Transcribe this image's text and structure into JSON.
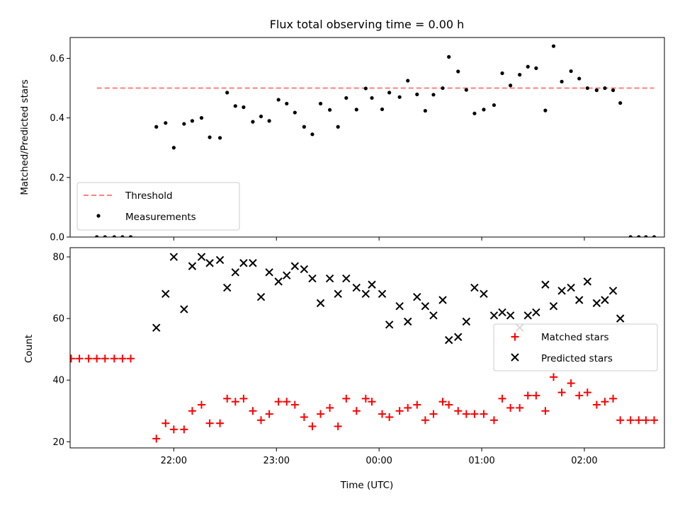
{
  "chart_data": [
    {
      "type": "scatter",
      "title": "Flux total observing time = 0.00 h",
      "ylabel": "Matched/Predicted stars",
      "xlabel": "",
      "xlim_hours": [
        20.99,
        26.78
      ],
      "ylim": [
        0,
        0.67
      ],
      "yticks": [
        0.0,
        0.2,
        0.4,
        0.6
      ],
      "ytick_labels": [
        "0.0",
        "0.2",
        "0.4",
        "0.6"
      ],
      "threshold": {
        "name": "Threshold",
        "value": 0.5,
        "x_range_hours": [
          21.25,
          26.68
        ],
        "color": "#ff7f7f"
      },
      "legend": {
        "placement": "lower-left",
        "entries": [
          "Threshold",
          "Measurements"
        ]
      },
      "series": [
        {
          "name": "Measurements",
          "color": "#000000",
          "x_hours": [
            21.25,
            21.33,
            21.42,
            21.5,
            21.58,
            21.83,
            21.92,
            22.0,
            22.1,
            22.18,
            22.27,
            22.35,
            22.45,
            22.52,
            22.6,
            22.68,
            22.77,
            22.85,
            22.93,
            23.02,
            23.1,
            23.18,
            23.27,
            23.35,
            23.43,
            23.52,
            23.6,
            23.68,
            23.78,
            23.87,
            23.93,
            24.03,
            24.1,
            24.2,
            24.28,
            24.37,
            24.45,
            24.53,
            24.62,
            24.68,
            24.77,
            24.85,
            24.93,
            25.02,
            25.12,
            25.2,
            25.28,
            25.37,
            25.45,
            25.53,
            25.62,
            25.7,
            25.78,
            25.87,
            25.95,
            26.03,
            26.12,
            26.2,
            26.28,
            26.35,
            26.45,
            26.53,
            26.6,
            26.68
          ],
          "y": [
            0.0,
            0.0,
            0.0,
            0.0,
            0.0,
            0.37,
            0.383,
            0.3,
            0.38,
            0.39,
            0.4,
            0.335,
            0.333,
            0.485,
            0.44,
            0.436,
            0.387,
            0.405,
            0.39,
            0.461,
            0.448,
            0.418,
            0.37,
            0.345,
            0.448,
            0.427,
            0.37,
            0.467,
            0.428,
            0.499,
            0.467,
            0.429,
            0.485,
            0.47,
            0.525,
            0.479,
            0.424,
            0.478,
            0.5,
            0.605,
            0.556,
            0.494,
            0.415,
            0.428,
            0.443,
            0.55,
            0.509,
            0.545,
            0.572,
            0.567,
            0.425,
            0.641,
            0.522,
            0.557,
            0.532,
            0.5,
            0.493,
            0.5,
            0.493,
            0.45,
            0.0,
            0.0,
            0.0,
            0.0
          ]
        }
      ]
    },
    {
      "type": "scatter",
      "title": "",
      "ylabel": "Count",
      "xlabel": "Time (UTC)",
      "xlim_hours": [
        20.99,
        26.78
      ],
      "ylim": [
        18,
        83
      ],
      "yticks": [
        20,
        40,
        60,
        80
      ],
      "ytick_labels": [
        "20",
        "40",
        "60",
        "80"
      ],
      "xticks_hours": [
        22,
        23,
        24,
        25,
        26
      ],
      "xtick_labels": [
        "22:00",
        "23:00",
        "00:00",
        "01:00",
        "02:00"
      ],
      "legend": {
        "placement": "center-right",
        "entries": [
          "Matched stars",
          "Predicted stars"
        ]
      },
      "series": [
        {
          "name": "Matched stars",
          "marker": "plus",
          "color": "#ff0000",
          "x_hours": [
            21.0,
            21.08,
            21.17,
            21.25,
            21.33,
            21.42,
            21.5,
            21.58,
            21.83,
            21.92,
            22.0,
            22.1,
            22.18,
            22.27,
            22.35,
            22.45,
            22.52,
            22.6,
            22.68,
            22.77,
            22.85,
            22.93,
            23.02,
            23.1,
            23.18,
            23.27,
            23.35,
            23.43,
            23.52,
            23.6,
            23.68,
            23.78,
            23.87,
            23.93,
            24.03,
            24.1,
            24.2,
            24.28,
            24.37,
            24.45,
            24.53,
            24.62,
            24.68,
            24.77,
            24.85,
            24.93,
            25.02,
            25.12,
            25.2,
            25.28,
            25.37,
            25.45,
            25.53,
            25.62,
            25.7,
            25.78,
            25.87,
            25.95,
            26.03,
            26.12,
            26.2,
            26.28,
            26.35,
            26.45,
            26.53,
            26.6,
            26.68
          ],
          "y": [
            47,
            47,
            47,
            47,
            47,
            47,
            47,
            47,
            21,
            26,
            24,
            24,
            30,
            32,
            26,
            26,
            34,
            33,
            34,
            30,
            27,
            29,
            33,
            33,
            32,
            28,
            25,
            29,
            31,
            25,
            34,
            30,
            34,
            33,
            29,
            28,
            30,
            31,
            32,
            27,
            29,
            33,
            32,
            30,
            29,
            29,
            29,
            27,
            34,
            31,
            31,
            35,
            35,
            30,
            41,
            36,
            39,
            35,
            36,
            32,
            33,
            34,
            27,
            27,
            27,
            27,
            27
          ]
        },
        {
          "name": "Predicted stars",
          "marker": "x",
          "color": "#000000",
          "x_hours": [
            21.83,
            21.92,
            22.0,
            22.1,
            22.18,
            22.27,
            22.35,
            22.45,
            22.52,
            22.6,
            22.68,
            22.77,
            22.85,
            22.93,
            23.02,
            23.1,
            23.18,
            23.27,
            23.35,
            23.43,
            23.52,
            23.6,
            23.68,
            23.78,
            23.87,
            23.93,
            24.03,
            24.1,
            24.2,
            24.28,
            24.37,
            24.45,
            24.53,
            24.62,
            24.68,
            24.77,
            24.85,
            24.93,
            25.02,
            25.12,
            25.2,
            25.28,
            25.37,
            25.45,
            25.53,
            25.62,
            25.7,
            25.78,
            25.87,
            25.95,
            26.03,
            26.12,
            26.2,
            26.28,
            26.35
          ],
          "y": [
            57,
            68,
            80,
            63,
            77,
            80,
            78,
            79,
            70,
            75,
            78,
            78,
            67,
            75,
            72,
            74,
            77,
            76,
            73,
            65,
            73,
            68,
            73,
            70,
            68,
            71,
            68,
            58,
            64,
            59,
            67,
            64,
            61,
            66,
            53,
            54,
            59,
            70,
            68,
            61,
            62,
            61,
            57,
            61,
            62,
            71,
            64,
            69,
            70,
            66,
            72,
            65,
            66,
            69,
            60
          ]
        }
      ]
    }
  ]
}
